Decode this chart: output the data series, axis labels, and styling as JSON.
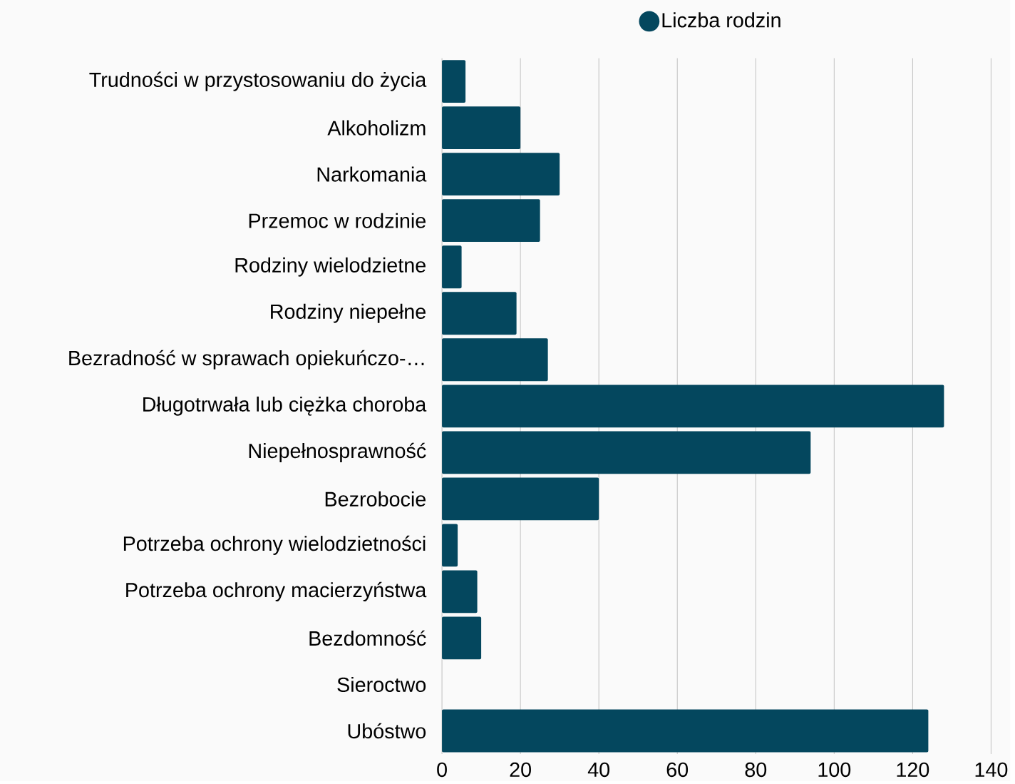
{
  "chart_data": {
    "type": "bar",
    "orientation": "horizontal",
    "categories": [
      "Trudności w przystosowaniu do życia",
      "Alkoholizm",
      "Narkomania",
      "Przemoc w rodzinie",
      "Rodziny wielodzietne",
      "Rodziny niepełne",
      "Bezradność w sprawach opiekuńczo-…",
      "Długotrwała lub ciężka choroba",
      "Niepełnosprawność",
      "Bezrobocie",
      "Potrzeba ochrony wielodzietności",
      "Potrzeba ochrony macierzyństwa",
      "Bezdomność",
      "Sieroctwo",
      "Ubóstwo"
    ],
    "series": [
      {
        "name": "Liczba rodzin",
        "color": "#04475e",
        "values": [
          6,
          20,
          30,
          25,
          5,
          19,
          27,
          128,
          94,
          40,
          4,
          9,
          10,
          0,
          124
        ]
      }
    ],
    "xlim": [
      0,
      140
    ],
    "xticks": [
      0,
      20,
      40,
      60,
      80,
      100,
      120,
      140
    ],
    "grid": "x",
    "legend": "top"
  }
}
